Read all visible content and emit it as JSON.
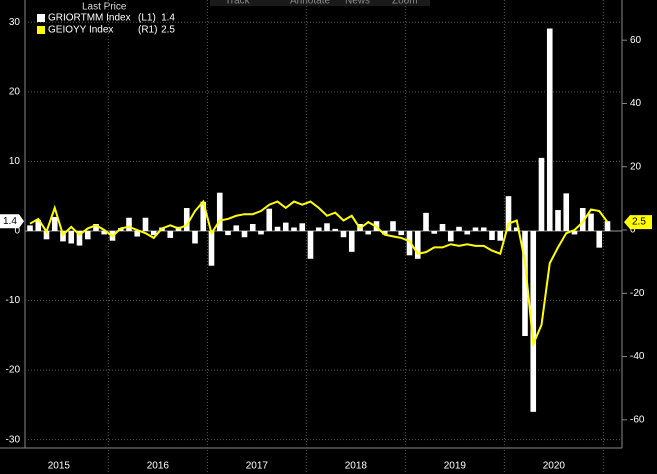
{
  "toolbar": [
    "Track",
    "Annotate",
    "News",
    "Zoom"
  ],
  "chart_data": {
    "type": "bar-line",
    "legend_title": "Last Price",
    "categories": [
      null,
      null,
      null,
      null,
      null,
      null,
      null,
      null,
      null,
      null,
      null,
      null,
      null,
      null,
      null,
      null,
      null,
      null,
      null,
      null,
      null,
      null,
      null,
      null,
      null,
      null,
      null,
      null,
      null,
      null,
      null,
      null,
      null,
      null,
      null,
      null,
      null,
      null,
      null,
      null,
      null,
      null,
      null,
      null,
      null,
      null,
      null,
      null,
      null,
      null,
      null,
      null,
      null,
      null,
      null,
      null,
      null,
      null,
      null,
      null,
      null,
      null,
      null,
      null,
      null,
      null,
      null,
      null,
      null,
      null,
      null
    ],
    "x_labels": [
      "2015",
      "2016",
      "2017",
      "2018",
      "2019",
      "2020"
    ],
    "series": [
      {
        "name": "GRIORTMM Index",
        "axis_label": "(L1)",
        "type": "bar",
        "axis": "y",
        "color": "#ffffff",
        "values": [
          0.8,
          1.6,
          -1.2,
          2.0,
          -1.5,
          -1.8,
          -2.1,
          -1.2,
          1.0,
          -0.5,
          -1.4,
          0.4,
          1.9,
          -0.8,
          1.9,
          -0.6,
          0.5,
          -1.0,
          0.6,
          3.3,
          -1.8,
          4.2,
          -5.0,
          5.5,
          -0.6,
          0.8,
          -0.9,
          1.0,
          -0.5,
          3.2,
          0.6,
          1.2,
          0.5,
          1.1,
          -4.0,
          0.5,
          1.1,
          0.3,
          -0.9,
          -3.0,
          1.0,
          -0.5,
          1.4,
          -0.5,
          1.4,
          -0.6,
          -3.5,
          -4.0,
          2.6,
          -0.4,
          1.0,
          -1.5,
          0.6,
          -0.5,
          0.5,
          0.5,
          -1.3,
          -1.4,
          5.0,
          0.5,
          -15.1,
          -26.0,
          10.5,
          29.1,
          3.0,
          5.4,
          -0.5,
          3.3,
          2.5,
          -2.4,
          1.4
        ]
      },
      {
        "name": "GEIOYY Index",
        "axis_label": "(R1)",
        "type": "line",
        "axis": "y2",
        "color": "#ffff00",
        "values": [
          2.0,
          3.5,
          -0.5,
          7.0,
          -1.5,
          1.0,
          -1.5,
          0.5,
          1.5,
          0.0,
          -2.0,
          0.5,
          1.0,
          0.0,
          -1.0,
          -2.5,
          0.5,
          1.5,
          0.5,
          1.5,
          6.0,
          9.0,
          -1.0,
          3.0,
          3.5,
          4.5,
          5.0,
          5.0,
          6.0,
          8.0,
          9.0,
          7.0,
          9.0,
          8.0,
          9.0,
          7.0,
          4.5,
          5.5,
          3.0,
          4.5,
          0.5,
          2.5,
          1.0,
          -1.5,
          -2.0,
          -2.5,
          -3.5,
          -7.5,
          -7.0,
          -5.5,
          -5.5,
          -4.5,
          -5.0,
          -4.5,
          -5.0,
          -5.0,
          -6.5,
          -7.5,
          2.0,
          3.0,
          -10.0,
          -36.0,
          -30.0,
          -10.5,
          -5.5,
          -1.0,
          0.0,
          2.5,
          6.5,
          6.0,
          2.5
        ]
      }
    ],
    "ylim": [
      -31.2,
      33.2
    ],
    "yticks": [
      30,
      20,
      10,
      0,
      -10,
      -20,
      -30
    ],
    "y2lim": [
      -68.9,
      72.7
    ],
    "y2ticks": [
      60,
      40,
      20,
      0,
      -20,
      -40,
      -60
    ],
    "grid": true
  }
}
